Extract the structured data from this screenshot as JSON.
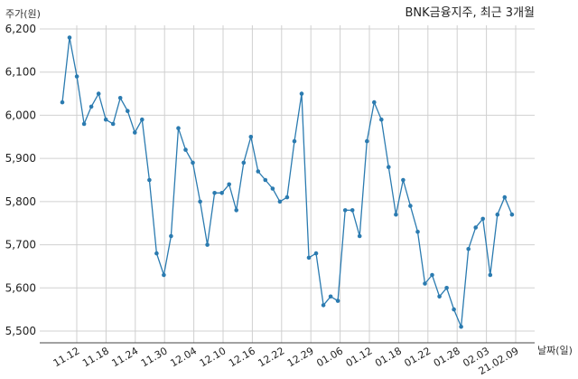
{
  "chart_data": {
    "type": "line",
    "title": "BNK금융지주, 최근 3개월",
    "ylabel": "주가(원)",
    "xlabel": "날짜(일)",
    "ylim": [
      5500,
      6200
    ],
    "yticks": [
      5500,
      5600,
      5700,
      5800,
      5900,
      6000,
      6100,
      6200
    ],
    "ytick_labels": [
      "5,500",
      "5,600",
      "5,700",
      "5,800",
      "5,900",
      "6,000",
      "6,100",
      "6,200"
    ],
    "x_tick_labels": [
      "11.12",
      "11.18",
      "11.24",
      "11.30",
      "12.04",
      "12.10",
      "12.16",
      "12.22",
      "12.29",
      "01.06",
      "01.12",
      "01.18",
      "01.22",
      "01.28",
      "02.03",
      "21.02.09"
    ],
    "grid": true,
    "series": [
      {
        "values": [
          6030,
          6180,
          6090,
          5980,
          6020,
          6050,
          5990,
          5980,
          6040,
          6010,
          5960,
          5990,
          5850,
          5680,
          5630,
          5720,
          5970,
          5920,
          5890,
          5800,
          5700,
          5820,
          5820,
          5840,
          5780,
          5890,
          5950,
          5870,
          5850,
          5830,
          5800,
          5810,
          5940,
          6050,
          5670,
          5680,
          5560,
          5580,
          5570,
          5780,
          5780,
          5720,
          5940,
          6030,
          5990,
          5880,
          5770,
          5850,
          5790,
          5730,
          5610,
          5630,
          5580,
          5600,
          5550,
          5510,
          5690,
          5740,
          5760,
          5630,
          5770,
          5810,
          5770
        ]
      }
    ],
    "colors": {
      "line": "#2b7bb0",
      "marker": "#2b7bb0"
    }
  }
}
